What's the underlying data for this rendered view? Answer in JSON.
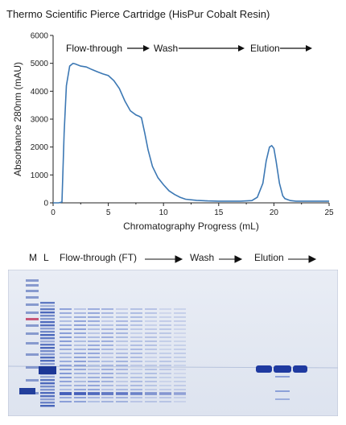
{
  "title": "Thermo Scientific Pierce Cartridge (HisPur Cobalt Resin)",
  "chart_data": {
    "type": "line",
    "xlabel": "Chromatography Progress (mL)",
    "ylabel": "Absorbance 280nm (mAU)",
    "xlim": [
      0,
      25
    ],
    "ylim": [
      0,
      6000
    ],
    "xticks": [
      0,
      5,
      10,
      15,
      20,
      25
    ],
    "yticks": [
      0,
      1000,
      2000,
      3000,
      4000,
      5000,
      6000
    ],
    "grid": false,
    "color": "#3c78b4",
    "annotations": [
      "Flow-through",
      "Wash",
      "Elution"
    ],
    "series": [
      {
        "x": [
          0,
          0.5,
          0.8,
          1.0,
          1.2,
          1.5,
          1.8,
          2.0,
          2.5,
          3.0,
          3.5,
          4.0,
          4.5,
          5.0,
          5.5,
          6.0,
          6.5,
          7.0,
          7.5,
          7.8,
          8.0,
          8.3,
          8.6,
          9.0,
          9.5,
          10.0,
          10.5,
          11.0,
          11.5,
          12.0,
          13.0,
          14.0,
          15.0,
          16.0,
          17.0,
          18.0,
          18.5,
          19.0,
          19.3,
          19.6,
          19.8,
          20.0,
          20.2,
          20.5,
          20.8,
          21.0,
          21.5,
          22.0,
          23.0,
          24.0,
          25.0
        ],
        "y": [
          0,
          0,
          30,
          2500,
          4200,
          4900,
          5000,
          4980,
          4900,
          4870,
          4780,
          4700,
          4620,
          4560,
          4380,
          4100,
          3650,
          3300,
          3150,
          3100,
          3050,
          2500,
          1900,
          1300,
          900,
          650,
          430,
          300,
          200,
          130,
          90,
          70,
          60,
          60,
          60,
          80,
          200,
          700,
          1500,
          2000,
          2050,
          1950,
          1500,
          700,
          250,
          150,
          80,
          60,
          60,
          60,
          60
        ]
      }
    ]
  },
  "gel": {
    "lane_labels": [
      "M",
      "L"
    ],
    "flow_through_label": "Flow-through (FT)",
    "wash_label": "Wash",
    "elution_label": "Elution"
  }
}
